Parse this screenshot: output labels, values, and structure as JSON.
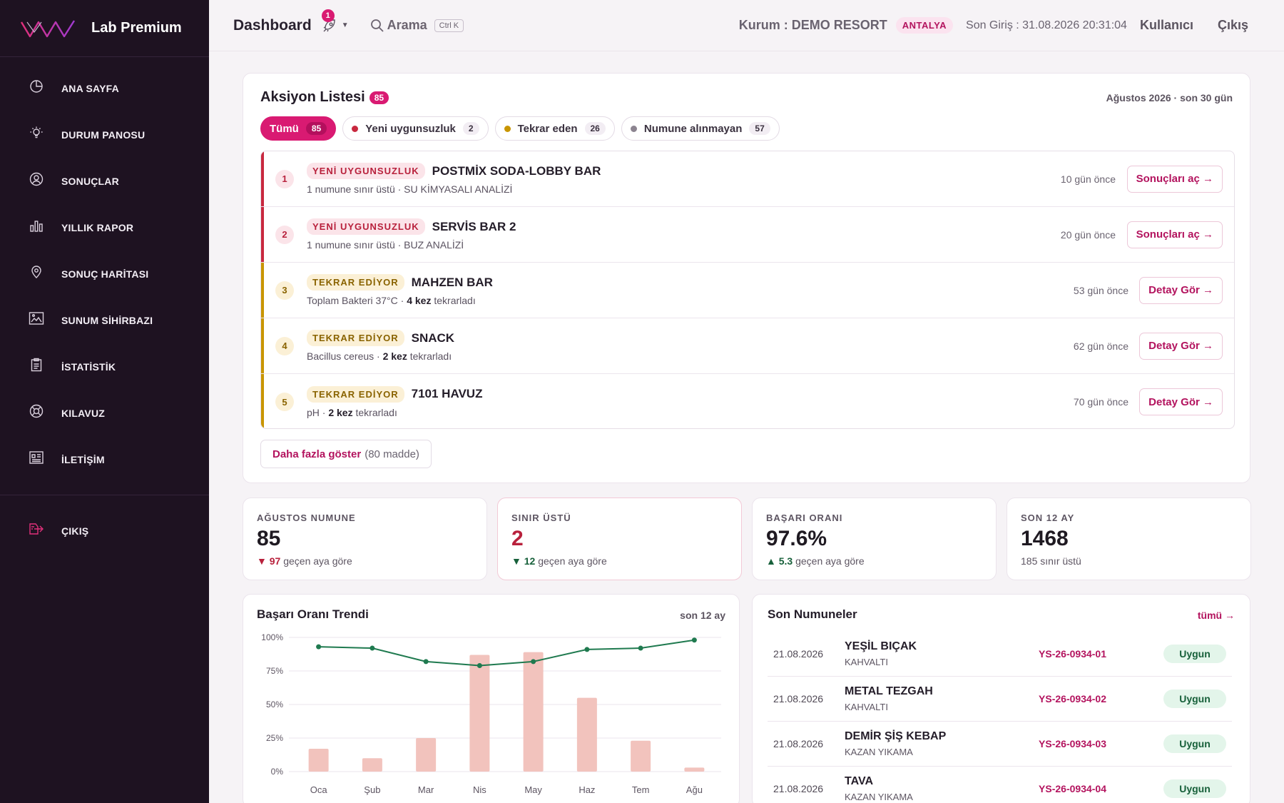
{
  "brand": {
    "name": "Lab Premium"
  },
  "sidebar": {
    "items": [
      {
        "label": "ANA SAYFA",
        "icon": "dashboard-icon"
      },
      {
        "label": "DURUM PANOSU",
        "icon": "lightbulb-icon"
      },
      {
        "label": "SONUÇLAR",
        "icon": "user-circle-icon"
      },
      {
        "label": "YILLIK RAPOR",
        "icon": "bar-chart-icon"
      },
      {
        "label": "SONUÇ HARİTASI",
        "icon": "map-pin-icon"
      },
      {
        "label": "SUNUM SİHİRBAZI",
        "icon": "presentation-icon"
      },
      {
        "label": "İSTATİSTİK",
        "icon": "clipboard-icon"
      },
      {
        "label": "KILAVUZ",
        "icon": "lifebuoy-icon"
      },
      {
        "label": "İLETİŞİM",
        "icon": "contact-book-icon"
      }
    ],
    "exit_label": "ÇIKIŞ"
  },
  "header": {
    "title": "Dashboard",
    "notif_count": "1",
    "search_label": "Arama",
    "search_shortcut": "Ctrl K",
    "org": "Kurum : DEMO RESORT",
    "city": "ANTALYA",
    "last_login": "Son Giriş : 31.08.2026 20:31:04",
    "user": "Kullanıcı",
    "logout": "Çıkış"
  },
  "actions": {
    "title": "Aksiyon Listesi",
    "count": "85",
    "period": "Ağustos 2026 · son 30 gün",
    "filters": [
      {
        "label": "Tümü",
        "count": "85"
      },
      {
        "label": "Yeni uygunsuzluk",
        "count": "2",
        "color": "#c8283f"
      },
      {
        "label": "Tekrar eden",
        "count": "26",
        "color": "#c89500"
      },
      {
        "label": "Numune alınmayan",
        "count": "57",
        "color": "#8c8490"
      }
    ],
    "rows": [
      {
        "num": "1",
        "tag": "YENİ UYGUNSUZLUK",
        "name": "POSTMİX SODA-LOBBY BAR",
        "detail": "1 numune sınır üstü · SU KİMYASALI ANALİZİ",
        "ago": "10 gün önce",
        "button": "Sonuçları aç →"
      },
      {
        "num": "2",
        "tag": "YENİ UYGUNSUZLUK",
        "name": "SERVİS BAR 2",
        "detail": "1 numune sınır üstü · BUZ ANALİZİ",
        "ago": "20 gün önce",
        "button": "Sonuçları aç →"
      },
      {
        "num": "3",
        "tag": "TEKRAR EDİYOR",
        "name": "MAHZEN BAR",
        "detail_a": "Toplam Bakteri 37°C · ",
        "detail_b": "4 kez",
        "detail_c": " tekrarladı",
        "ago": "53 gün önce",
        "button": "Detay Gör →"
      },
      {
        "num": "4",
        "tag": "TEKRAR EDİYOR",
        "name": "SNACK",
        "detail_a": "Bacillus cereus · ",
        "detail_b": "2 kez",
        "detail_c": " tekrarladı",
        "ago": "62 gün önce",
        "button": "Detay Gör →"
      },
      {
        "num": "5",
        "tag": "TEKRAR EDİYOR",
        "name": "7101 HAVUZ",
        "detail_a": "pH · ",
        "detail_b": "2 kez",
        "detail_c": " tekrarladı",
        "ago": "70 gün önce",
        "button": "Detay Gör →"
      }
    ],
    "more_label": "Daha fazla göster",
    "more_count": "(80 madde)"
  },
  "kpis": [
    {
      "label": "AĞUSTOS NUMUNE",
      "value": "85",
      "arrow": "▼",
      "delta": "97",
      "note": " geçen aya göre"
    },
    {
      "label": "SINIR ÜSTÜ",
      "value": "2",
      "arrow": "▼",
      "delta": "12",
      "note": " geçen aya göre"
    },
    {
      "label": "BAŞARI ORANI",
      "value": "97.6%",
      "arrow": "▲",
      "delta": "5.3",
      "note": " geçen aya göre"
    },
    {
      "label": "SON 12 AY",
      "value": "1468",
      "note": "185 sınır üstü"
    }
  ],
  "trend": {
    "title": "Başarı Oranı Trendi",
    "period": "son 12 ay"
  },
  "chart_data": {
    "type": "bar",
    "categories": [
      "Oca",
      "Şub",
      "Mar",
      "Nis",
      "May",
      "Haz",
      "Tem",
      "Ağu"
    ],
    "yticks": [
      "100%",
      "75%",
      "50%",
      "25%",
      "0%"
    ],
    "ylim": [
      0,
      100
    ],
    "series": [
      {
        "type": "bar",
        "values": [
          17,
          10,
          25,
          87,
          89,
          55,
          23,
          3
        ],
        "color": "#f2c3bd"
      },
      {
        "type": "line",
        "values": [
          93,
          92,
          82,
          79,
          82,
          91,
          92,
          98
        ],
        "color": "#1f7a4f"
      }
    ]
  },
  "recent": {
    "title": "Son Numuneler",
    "all_label": "tümü →",
    "rows": [
      {
        "date": "21.08.2026",
        "name": "YEŞİL BIÇAK",
        "category": "KAHVALTI",
        "code": "YS-26-0934-01",
        "status": "Uygun"
      },
      {
        "date": "21.08.2026",
        "name": "METAL TEZGAH",
        "category": "KAHVALTI",
        "code": "YS-26-0934-02",
        "status": "Uygun"
      },
      {
        "date": "21.08.2026",
        "name": "DEMİR ŞİŞ KEBAP",
        "category": "KAZAN YIKAMA",
        "code": "YS-26-0934-03",
        "status": "Uygun"
      },
      {
        "date": "21.08.2026",
        "name": "TAVA",
        "category": "KAZAN YIKAMA",
        "code": "YS-26-0934-04",
        "status": "Uygun"
      }
    ]
  }
}
